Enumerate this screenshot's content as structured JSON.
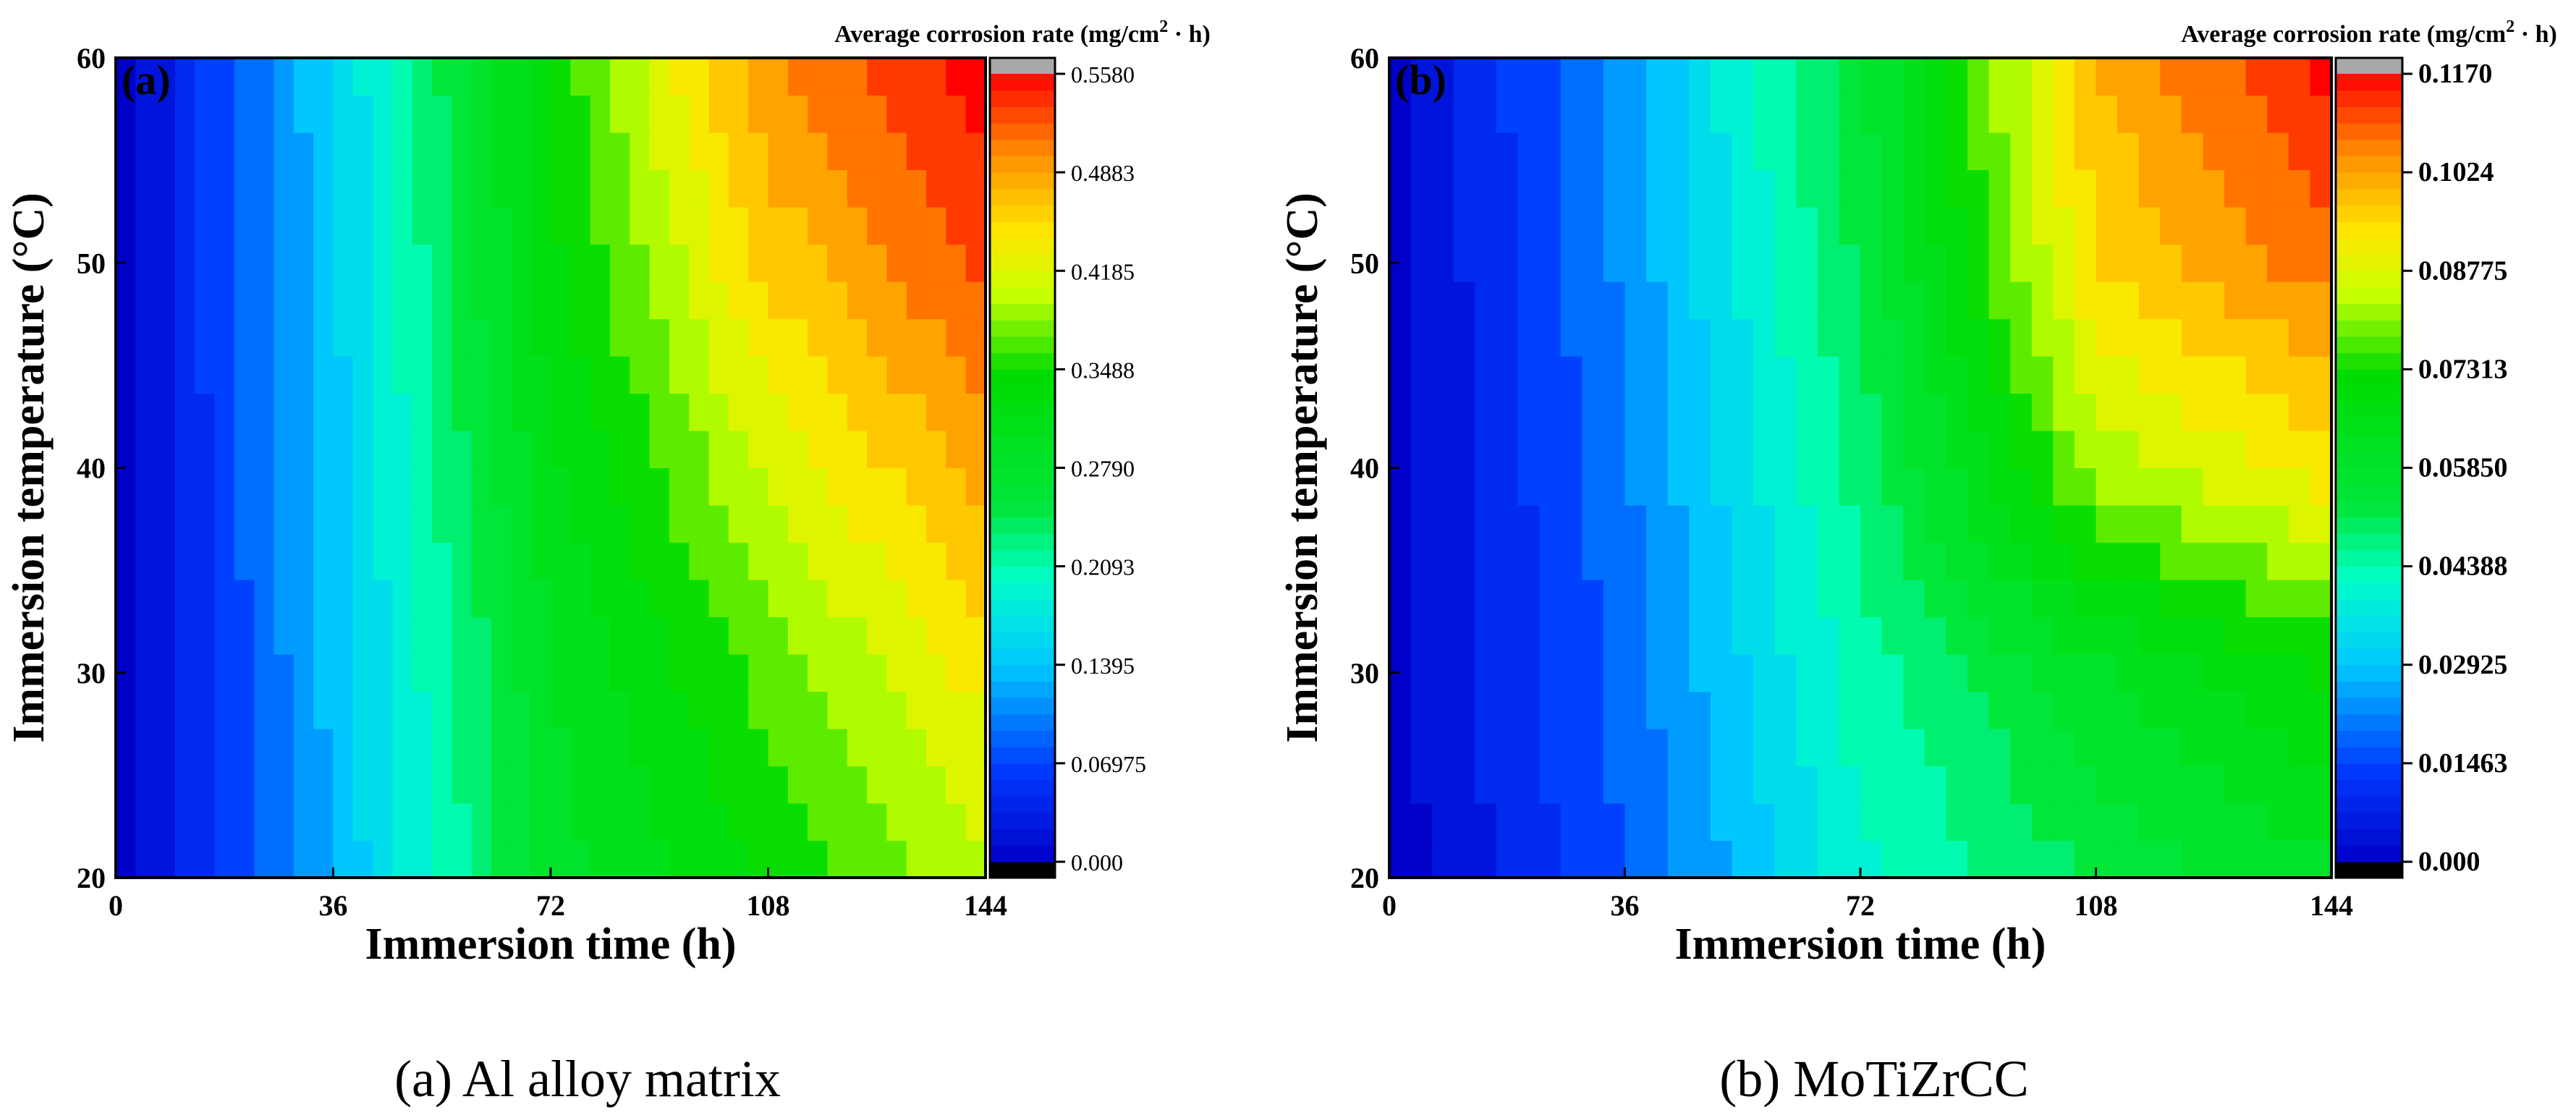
{
  "chart_data": [
    {
      "type": "heatmap",
      "panel_label": "(a)",
      "caption": "(a) Al alloy matrix",
      "xlabel": "Immersion time (h)",
      "ylabel": "Immersion temperature (°C)",
      "xlim": [
        0,
        144
      ],
      "ylim": [
        20,
        60
      ],
      "x_ticks": [
        "0",
        "36",
        "72",
        "108",
        "144"
      ],
      "y_ticks": [
        "20",
        "30",
        "40",
        "50",
        "60"
      ],
      "x": [
        0,
        36,
        72,
        108,
        144
      ],
      "y": [
        20,
        30,
        40,
        50,
        60
      ],
      "z": [
        [
          0.0,
          0.13,
          0.28,
          0.34,
          0.4
        ],
        [
          0.0,
          0.135,
          0.29,
          0.37,
          0.44
        ],
        [
          0.0,
          0.14,
          0.31,
          0.41,
          0.49
        ],
        [
          0.0,
          0.145,
          0.33,
          0.46,
          0.53
        ],
        [
          0.0,
          0.15,
          0.34,
          0.5,
          0.558
        ]
      ],
      "colorbar": {
        "title": "Average corrosion rate (mg/cm² · h)",
        "title_main": "Average corrosion rate (mg/cm",
        "title_sup": "2",
        "title_end": " · h)",
        "min": 0,
        "max": 0.558,
        "tick_labels": [
          "0.000",
          "0.06975",
          "0.1395",
          "0.2093",
          "0.2790",
          "0.3488",
          "0.4185",
          "0.4883",
          "0.5580"
        ]
      }
    },
    {
      "type": "heatmap",
      "panel_label": "(b)",
      "caption": "(b) MoTiZrCC",
      "xlabel": "Immersion time (h)",
      "ylabel": "Immersion temperature (°C)",
      "xlim": [
        0,
        144
      ],
      "ylim": [
        20,
        60
      ],
      "x_ticks": [
        "0",
        "36",
        "72",
        "108",
        "144"
      ],
      "y_ticks": [
        "20",
        "30",
        "40",
        "50",
        "60"
      ],
      "x": [
        0,
        36,
        72,
        108,
        144
      ],
      "y": [
        20,
        30,
        40,
        50,
        60
      ],
      "z": [
        [
          0.0,
          0.017,
          0.04,
          0.052,
          0.06
        ],
        [
          0.0,
          0.019,
          0.044,
          0.06,
          0.072
        ],
        [
          0.0,
          0.021,
          0.048,
          0.082,
          0.093
        ],
        [
          0.0,
          0.023,
          0.052,
          0.095,
          0.108
        ],
        [
          0.0,
          0.025,
          0.055,
          0.1,
          0.117
        ]
      ],
      "colorbar": {
        "title": "Average corrosion rate (mg/cm² · h)",
        "title_main": "Average corrosion rate (mg/cm",
        "title_sup": "2",
        "title_end": " · h)",
        "min": 0,
        "max": 0.117,
        "tick_labels": [
          "0.000",
          "0.01463",
          "0.02925",
          "0.04388",
          "0.05850",
          "0.07313",
          "0.08775",
          "0.1024",
          "0.1170"
        ]
      }
    }
  ]
}
